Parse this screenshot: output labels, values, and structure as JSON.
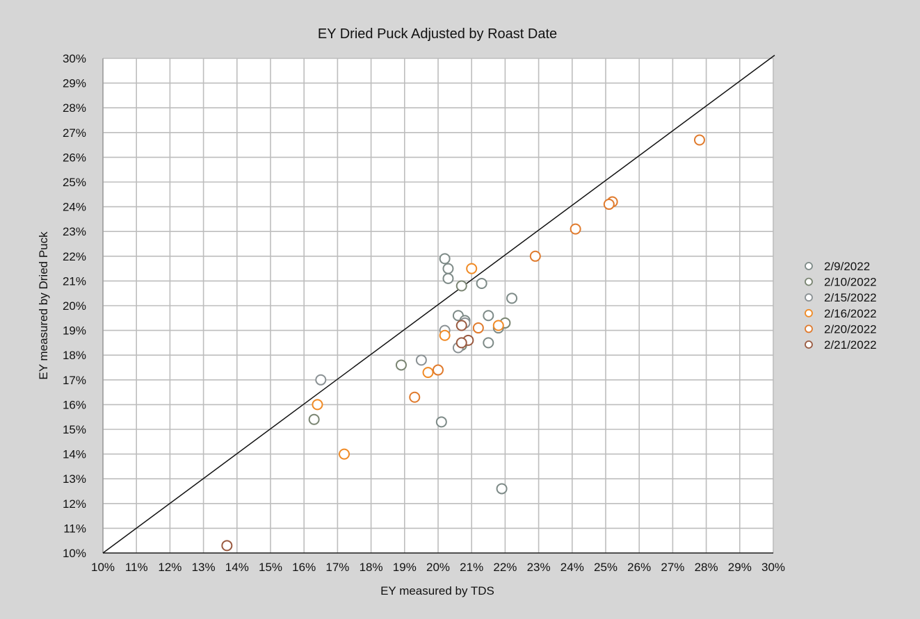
{
  "chart_data": {
    "type": "scatter",
    "title": "EY Dried Puck Adjusted by Roast Date",
    "xlabel": "EY measured by TDS",
    "ylabel": "EY measured by Dried Puck",
    "xlim": [
      10,
      30
    ],
    "ylim": [
      10,
      30
    ],
    "x_ticks": [
      "10%",
      "11%",
      "12%",
      "13%",
      "14%",
      "15%",
      "16%",
      "17%",
      "18%",
      "19%",
      "20%",
      "21%",
      "22%",
      "23%",
      "24%",
      "25%",
      "26%",
      "27%",
      "28%",
      "29%",
      "30%"
    ],
    "y_ticks": [
      "10%",
      "11%",
      "12%",
      "13%",
      "14%",
      "15%",
      "16%",
      "17%",
      "18%",
      "19%",
      "20%",
      "21%",
      "22%",
      "23%",
      "24%",
      "25%",
      "26%",
      "27%",
      "28%",
      "29%",
      "30%"
    ],
    "grid": true,
    "legend_position": "right",
    "reference_line": {
      "x": [
        10,
        30
      ],
      "y": [
        10,
        30
      ]
    },
    "series": [
      {
        "name": "2/9/2022",
        "color": "#7d8a87",
        "points": [
          {
            "x": 20.2,
            "y": 21.9
          },
          {
            "x": 20.3,
            "y": 21.5
          },
          {
            "x": 20.3,
            "y": 21.1
          },
          {
            "x": 21.3,
            "y": 20.9
          },
          {
            "x": 22.2,
            "y": 20.3
          },
          {
            "x": 20.6,
            "y": 19.6
          },
          {
            "x": 21.5,
            "y": 19.6
          },
          {
            "x": 20.8,
            "y": 19.4
          },
          {
            "x": 21.8,
            "y": 19.1
          },
          {
            "x": 21.5,
            "y": 18.5
          },
          {
            "x": 20.1,
            "y": 15.3
          },
          {
            "x": 21.9,
            "y": 12.6
          }
        ]
      },
      {
        "name": "2/10/2022",
        "color": "#7a8572",
        "points": [
          {
            "x": 20.7,
            "y": 20.8
          },
          {
            "x": 18.9,
            "y": 17.6
          },
          {
            "x": 16.3,
            "y": 15.4
          },
          {
            "x": 20.7,
            "y": 18.4
          },
          {
            "x": 22.0,
            "y": 19.3
          }
        ]
      },
      {
        "name": "2/15/2022",
        "color": "#8a9194",
        "points": [
          {
            "x": 16.5,
            "y": 17.0
          },
          {
            "x": 20.2,
            "y": 19.0
          },
          {
            "x": 19.5,
            "y": 17.8
          },
          {
            "x": 20.6,
            "y": 18.3
          },
          {
            "x": 20.8,
            "y": 19.3
          }
        ]
      },
      {
        "name": "2/16/2022",
        "color": "#f08a24",
        "points": [
          {
            "x": 21.0,
            "y": 21.5
          },
          {
            "x": 16.4,
            "y": 16.0
          },
          {
            "x": 17.2,
            "y": 14.0
          },
          {
            "x": 19.7,
            "y": 17.3
          },
          {
            "x": 20.2,
            "y": 18.8
          },
          {
            "x": 21.8,
            "y": 19.2
          }
        ]
      },
      {
        "name": "2/20/2022",
        "color": "#e07a2c",
        "points": [
          {
            "x": 27.8,
            "y": 26.7
          },
          {
            "x": 25.2,
            "y": 24.2
          },
          {
            "x": 25.1,
            "y": 24.1
          },
          {
            "x": 24.1,
            "y": 23.1
          },
          {
            "x": 22.9,
            "y": 22.0
          },
          {
            "x": 21.2,
            "y": 19.1
          },
          {
            "x": 20.0,
            "y": 17.4
          },
          {
            "x": 19.3,
            "y": 16.3
          }
        ]
      },
      {
        "name": "2/21/2022",
        "color": "#9a5a40",
        "points": [
          {
            "x": 13.7,
            "y": 10.3
          },
          {
            "x": 20.9,
            "y": 18.6
          },
          {
            "x": 20.7,
            "y": 18.5
          },
          {
            "x": 20.7,
            "y": 19.2
          }
        ]
      }
    ]
  }
}
